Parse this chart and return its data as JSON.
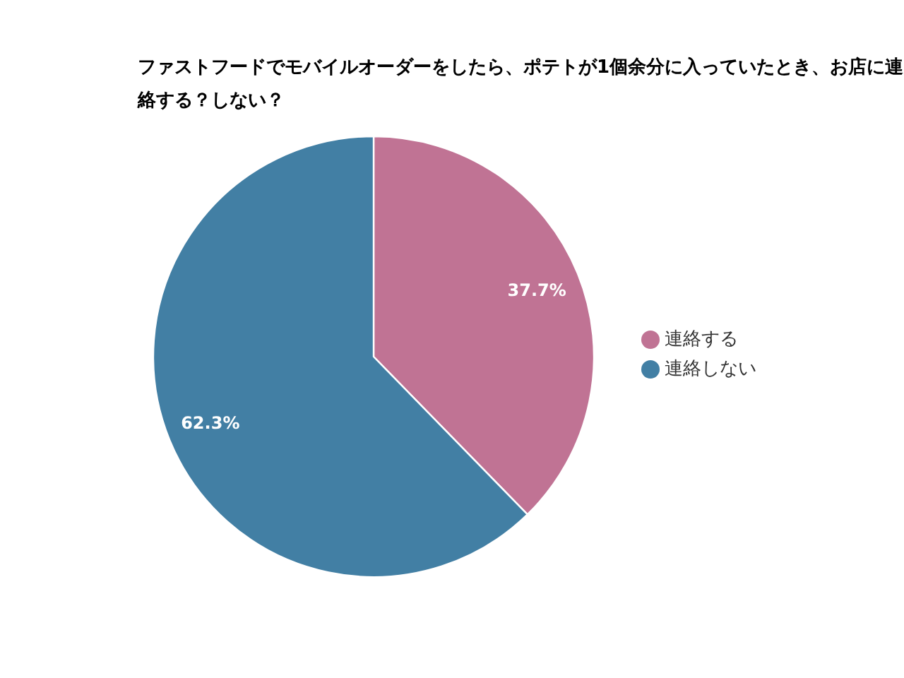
{
  "chart_data": {
    "type": "pie",
    "title": "ファストフードでモバイルオーダーをしたら、ポテトが1個余分に入っていたとき、お店に連絡する？しない？",
    "categories": [
      "連絡する",
      "連絡しない"
    ],
    "values": [
      37.7,
      62.3
    ],
    "colors": [
      "#c07394",
      "#427fa4"
    ],
    "value_labels": [
      "37.7%",
      "62.3%"
    ],
    "legend": "right"
  }
}
